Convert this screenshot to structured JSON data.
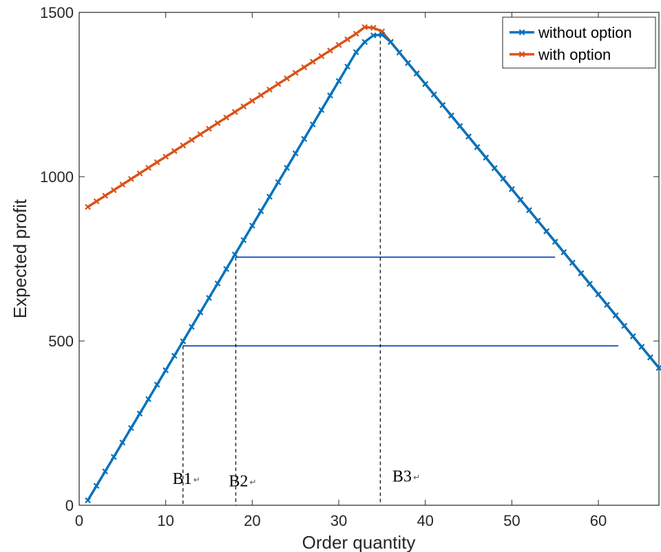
{
  "chart_data": {
    "type": "line",
    "title": "",
    "xlabel": "Order quantity",
    "ylabel": "Expected profit",
    "xlim": [
      0,
      67
    ],
    "ylim": [
      0,
      1500
    ],
    "xticks": [
      0,
      10,
      20,
      30,
      40,
      50,
      60
    ],
    "yticks": [
      0,
      500,
      1000,
      1500
    ],
    "grid": false,
    "legend_position": "top-right",
    "series": [
      {
        "name": "without option",
        "color": "#0072BD",
        "x": [
          1,
          2,
          3,
          4,
          5,
          6,
          7,
          8,
          9,
          10,
          11,
          12,
          13,
          14,
          15,
          16,
          17,
          18,
          19,
          20,
          21,
          22,
          23,
          24,
          25,
          26,
          27,
          28,
          29,
          30,
          31,
          32,
          33,
          34,
          35,
          36,
          37,
          38,
          39,
          40,
          41,
          42,
          43,
          44,
          45,
          46,
          47,
          48,
          49,
          50,
          51,
          52,
          53,
          54,
          55,
          56,
          57,
          58,
          59,
          60,
          61,
          62,
          63,
          64,
          65,
          66,
          67
        ],
        "y": [
          15,
          59,
          103,
          147,
          191,
          235,
          279,
          323,
          367,
          411,
          455,
          499,
          543,
          587,
          631,
          675,
          719,
          763,
          807,
          851,
          895,
          939,
          983,
          1027,
          1071,
          1115,
          1159,
          1203,
          1247,
          1291,
          1335,
          1379,
          1410,
          1430,
          1432,
          1410,
          1378,
          1346,
          1314,
          1282,
          1250,
          1218,
          1186,
          1154,
          1122,
          1090,
          1058,
          1026,
          994,
          962,
          930,
          898,
          866,
          834,
          802,
          770,
          738,
          706,
          674,
          642,
          610,
          578,
          546,
          514,
          482,
          450,
          418
        ]
      },
      {
        "name": "with option",
        "color": "#D95319",
        "x": [
          1,
          2,
          3,
          4,
          5,
          6,
          7,
          8,
          9,
          10,
          11,
          12,
          13,
          14,
          15,
          16,
          17,
          18,
          19,
          20,
          21,
          22,
          23,
          24,
          25,
          26,
          27,
          28,
          29,
          30,
          31,
          32,
          33,
          34,
          35,
          36,
          37,
          38,
          39,
          40,
          41,
          42,
          43,
          44,
          45,
          46,
          47,
          48,
          49,
          50,
          51,
          52,
          53,
          54,
          55,
          56,
          57,
          58,
          59,
          60,
          61,
          62,
          63,
          64,
          65,
          66,
          67
        ],
        "y": [
          908,
          925,
          942,
          959,
          976,
          993,
          1010,
          1027,
          1044,
          1061,
          1078,
          1095,
          1112,
          1129,
          1146,
          1163,
          1180,
          1197,
          1214,
          1231,
          1248,
          1265,
          1282,
          1299,
          1316,
          1333,
          1350,
          1367,
          1384,
          1401,
          1418,
          1435,
          1455,
          1453,
          1442,
          1410,
          1378,
          1346,
          1314,
          1282,
          1250,
          1218,
          1186,
          1154,
          1122,
          1090,
          1058,
          1026,
          994,
          962,
          930,
          898,
          866,
          834,
          802,
          770,
          738,
          706,
          674,
          642,
          610,
          578,
          546,
          514,
          482,
          450,
          418
        ]
      }
    ],
    "annotations": [
      {
        "text": "B1",
        "mark": "↵",
        "x": 12,
        "label_x": 10.8,
        "label_y": 65
      },
      {
        "text": "B2",
        "mark": "↵",
        "x": 18.1,
        "label_x": 17.3,
        "label_y": 58
      },
      {
        "text": "B3",
        "mark": "↵",
        "x": 34.8,
        "label_x": 36.2,
        "label_y": 72
      }
    ],
    "reference_lines": [
      {
        "from_x": 12,
        "to_x": 62.3,
        "y": 485,
        "color": "#2A5CC6"
      },
      {
        "from_x": 18.1,
        "to_x": 55,
        "y": 755,
        "color": "#2A5CC6"
      }
    ],
    "vertical_dashed": [
      {
        "x": 12,
        "y_top": 485
      },
      {
        "x": 18.1,
        "y_top": 755
      },
      {
        "x": 34.8,
        "y_top": 1432
      }
    ]
  }
}
